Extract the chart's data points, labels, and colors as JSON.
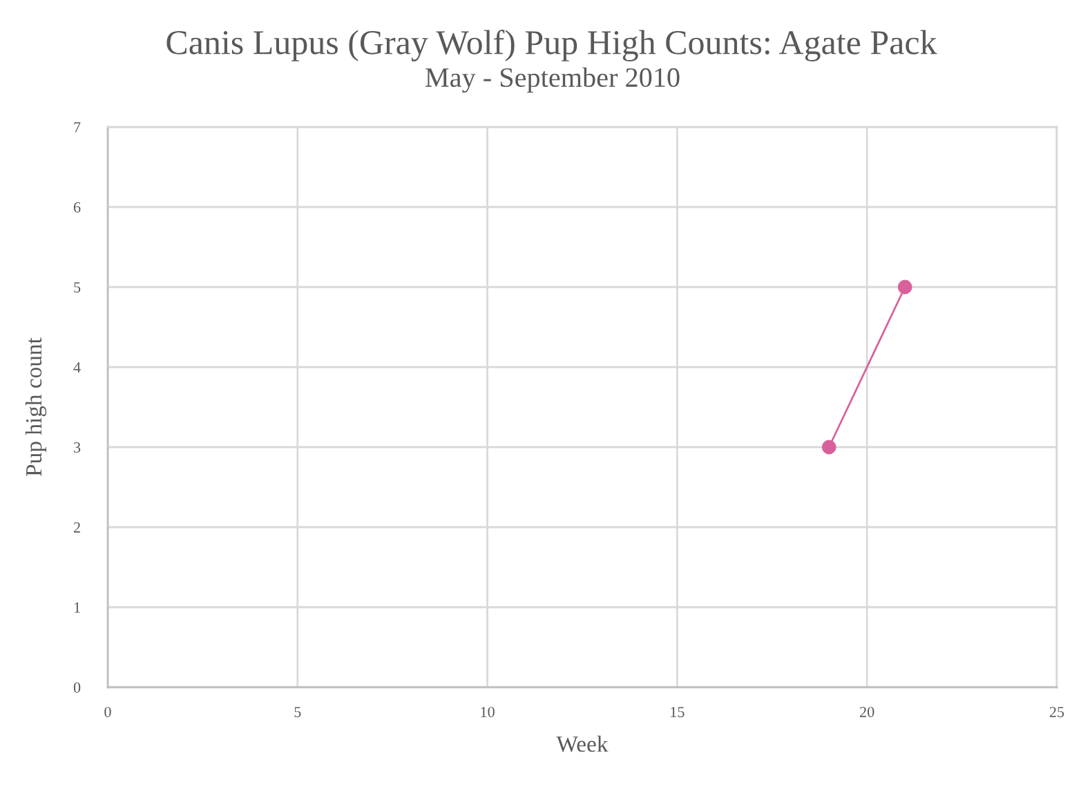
{
  "chart_data": {
    "type": "line",
    "title": "Canis Lupus (Gray Wolf) Pup High Counts: Agate Pack",
    "subtitle": "May - September 2010",
    "xlabel": "Week",
    "ylabel": "Pup high count",
    "series": [
      {
        "color": "#d9619b",
        "x": [
          19,
          21
        ],
        "values": [
          3,
          5
        ]
      }
    ],
    "xlim": [
      0,
      25
    ],
    "xticks": [
      0,
      5,
      10,
      15,
      20,
      25
    ],
    "ylim": [
      0,
      7
    ],
    "yticks": [
      0,
      1,
      2,
      3,
      4,
      5,
      6,
      7
    ],
    "grid": true,
    "marker": "circle",
    "line_style": "solid",
    "legend": false
  }
}
